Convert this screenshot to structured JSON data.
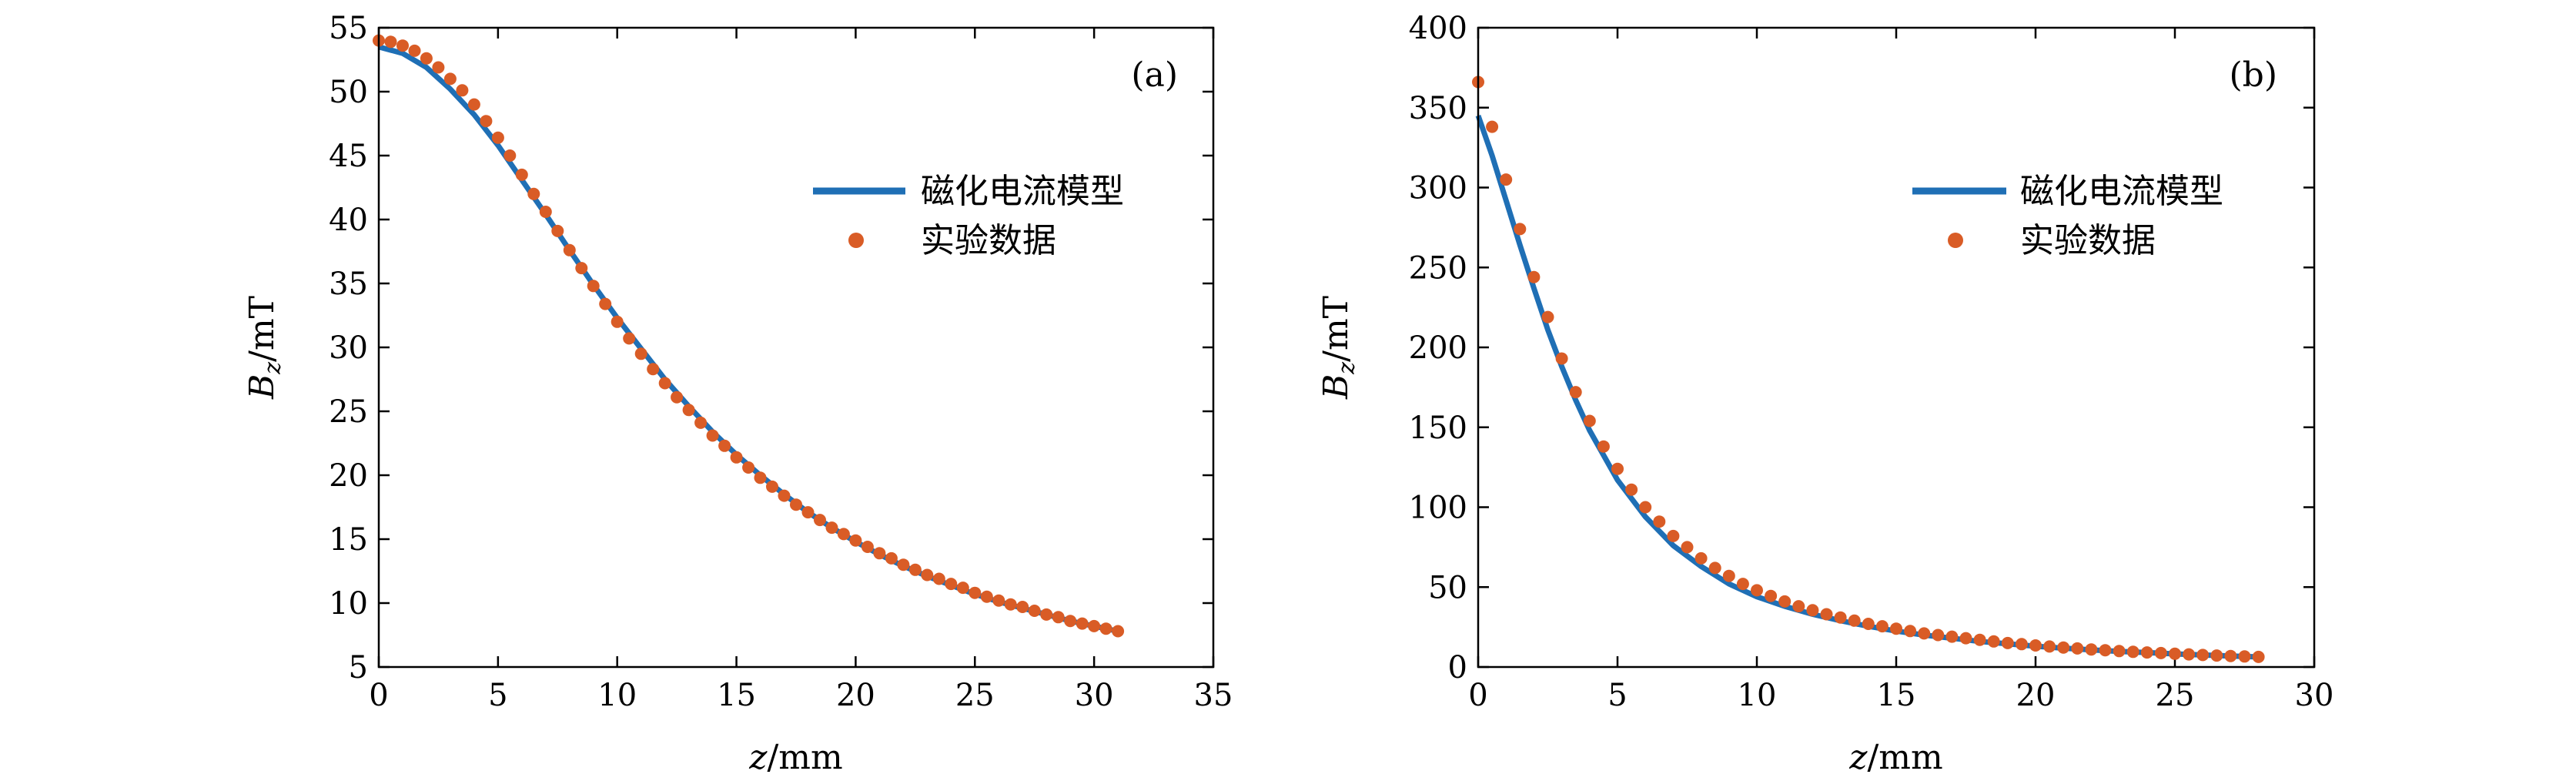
{
  "colors": {
    "model_line": "#1f6fb5",
    "experiment_points": "#d95c26",
    "axes": "#000000",
    "background": "#ffffff"
  },
  "chart_data": [
    {
      "type": "line",
      "panel_label": "(a)",
      "xlabel": {
        "var": "z",
        "unit": "/mm"
      },
      "ylabel": {
        "var": "B",
        "sub": "z",
        "unit": "/mT"
      },
      "xlim": [
        0,
        35
      ],
      "ylim": [
        5,
        55
      ],
      "xticks": [
        0,
        5,
        10,
        15,
        20,
        25,
        30,
        35
      ],
      "yticks": [
        5,
        10,
        15,
        20,
        25,
        30,
        35,
        40,
        45,
        50,
        55
      ],
      "grid": false,
      "legend_position": "upper-right",
      "series": [
        {
          "name": "磁化电流模型",
          "kind": "line",
          "x": [
            0,
            1,
            2,
            3,
            4,
            5,
            6,
            7,
            8,
            9,
            10,
            11,
            12,
            13,
            14,
            15,
            16,
            17,
            18,
            19,
            20,
            21,
            22,
            23,
            24,
            25,
            26,
            27,
            28,
            29,
            30,
            31
          ],
          "y": [
            53.5,
            53.0,
            51.9,
            50.2,
            48.2,
            45.8,
            43.1,
            40.4,
            37.6,
            34.9,
            32.3,
            29.9,
            27.5,
            25.4,
            23.4,
            21.6,
            20.0,
            18.5,
            17.1,
            15.9,
            14.8,
            13.8,
            12.9,
            12.1,
            11.4,
            10.7,
            10.1,
            9.6,
            9.1,
            8.6,
            8.2,
            7.8
          ]
        },
        {
          "name": "实验数据",
          "kind": "scatter",
          "x": [
            0,
            0.5,
            1,
            1.5,
            2,
            2.5,
            3,
            3.5,
            4,
            4.5,
            5,
            5.5,
            6,
            6.5,
            7,
            7.5,
            8,
            8.5,
            9,
            9.5,
            10,
            10.5,
            11,
            11.5,
            12,
            12.5,
            13,
            13.5,
            14,
            14.5,
            15,
            15.5,
            16,
            16.5,
            17,
            17.5,
            18,
            18.5,
            19,
            19.5,
            20,
            20.5,
            21,
            21.5,
            22,
            22.5,
            23,
            23.5,
            24,
            24.5,
            25,
            25.5,
            26,
            26.5,
            27,
            27.5,
            28,
            28.5,
            29,
            29.5,
            30,
            30.5,
            31
          ],
          "y": [
            54.0,
            53.9,
            53.6,
            53.2,
            52.6,
            51.9,
            51.0,
            50.1,
            49.0,
            47.7,
            46.4,
            45.0,
            43.5,
            42.0,
            40.6,
            39.1,
            37.6,
            36.2,
            34.8,
            33.4,
            32.0,
            30.7,
            29.5,
            28.3,
            27.2,
            26.1,
            25.1,
            24.1,
            23.1,
            22.3,
            21.4,
            20.6,
            19.8,
            19.1,
            18.4,
            17.7,
            17.1,
            16.5,
            15.9,
            15.4,
            14.9,
            14.4,
            13.9,
            13.5,
            13.0,
            12.6,
            12.2,
            11.9,
            11.5,
            11.2,
            10.8,
            10.5,
            10.2,
            9.9,
            9.7,
            9.4,
            9.1,
            8.9,
            8.6,
            8.4,
            8.2,
            8.0,
            7.8
          ]
        }
      ]
    },
    {
      "type": "line",
      "panel_label": "(b)",
      "xlabel": {
        "var": "z",
        "unit": "/mm"
      },
      "ylabel": {
        "var": "B",
        "sub": "z",
        "unit": "/mT"
      },
      "xlim": [
        0,
        30
      ],
      "ylim": [
        0,
        400
      ],
      "xticks": [
        0,
        5,
        10,
        15,
        20,
        25,
        30
      ],
      "yticks": [
        0,
        50,
        100,
        150,
        200,
        250,
        300,
        350,
        400
      ],
      "grid": false,
      "legend_position": "upper-right",
      "series": [
        {
          "name": "磁化电流模型",
          "kind": "line",
          "x": [
            0,
            0.5,
            1,
            1.5,
            2,
            2.5,
            3,
            3.5,
            4,
            5,
            6,
            7,
            8,
            9,
            10,
            11,
            12,
            13,
            14,
            15,
            16,
            17,
            18,
            19,
            20,
            21,
            22,
            23,
            24,
            25,
            26,
            27,
            28
          ],
          "y": [
            345,
            320,
            292,
            264,
            237,
            211,
            188,
            167,
            148,
            117,
            94,
            76,
            63,
            52,
            44,
            38,
            33,
            29,
            25.5,
            22.5,
            20,
            18,
            16,
            14.5,
            13,
            11.8,
            10.7,
            9.8,
            9,
            8.2,
            7.5,
            6.9,
            6.3
          ]
        },
        {
          "name": "实验数据",
          "kind": "scatter",
          "x": [
            0,
            0.5,
            1,
            1.5,
            2,
            2.5,
            3,
            3.5,
            4,
            4.5,
            5,
            5.5,
            6,
            6.5,
            7,
            7.5,
            8,
            8.5,
            9,
            9.5,
            10,
            10.5,
            11,
            11.5,
            12,
            12.5,
            13,
            13.5,
            14,
            14.5,
            15,
            15.5,
            16,
            16.5,
            17,
            17.5,
            18,
            18.5,
            19,
            19.5,
            20,
            20.5,
            21,
            21.5,
            22,
            22.5,
            23,
            23.5,
            24,
            24.5,
            25,
            25.5,
            26,
            26.5,
            27,
            27.5,
            28
          ],
          "y": [
            366,
            338,
            305,
            274,
            244,
            219,
            193,
            172,
            154,
            138,
            124,
            111,
            100,
            91,
            82,
            75,
            68,
            62,
            57,
            52,
            48,
            44.5,
            41,
            38,
            35.5,
            33,
            31,
            29,
            27,
            25.5,
            24,
            22.5,
            21,
            20,
            19,
            18,
            17,
            16,
            15,
            14.3,
            13.5,
            12.8,
            12.2,
            11.6,
            11,
            10.5,
            10,
            9.5,
            9.1,
            8.7,
            8.3,
            7.9,
            7.5,
            7.2,
            6.9,
            6.6,
            6.3
          ]
        }
      ]
    }
  ]
}
